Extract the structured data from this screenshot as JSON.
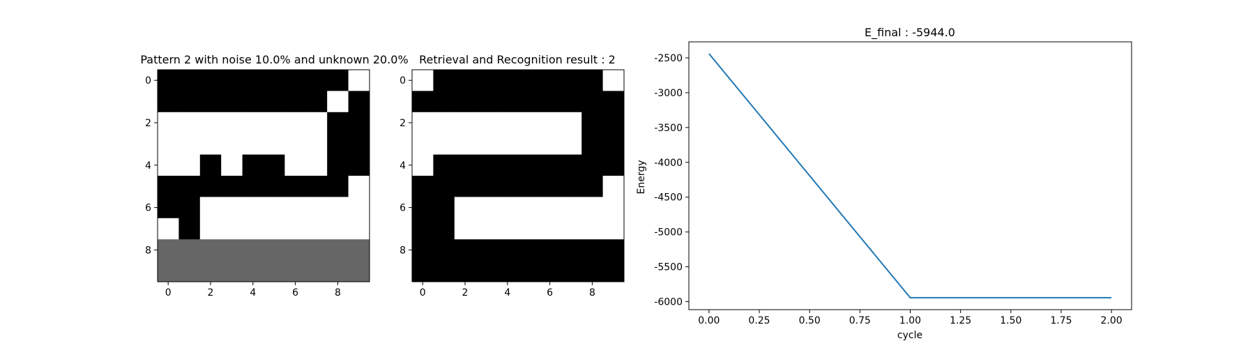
{
  "chart_data": [
    {
      "type": "heatmap",
      "title": "Pattern 2 with noise 10.0% and unknown 20.0%",
      "x_ticks": [
        "0",
        "2",
        "4",
        "6",
        "8"
      ],
      "y_ticks": [
        "0",
        "2",
        "4",
        "6",
        "8"
      ],
      "colors": {
        "1": "#ffffff",
        "-1": "#000000",
        "0": "#666666"
      },
      "grid": [
        [
          -1,
          -1,
          -1,
          -1,
          -1,
          -1,
          -1,
          -1,
          -1,
          1
        ],
        [
          -1,
          -1,
          -1,
          -1,
          -1,
          -1,
          -1,
          -1,
          1,
          -1
        ],
        [
          1,
          1,
          1,
          1,
          1,
          1,
          1,
          1,
          -1,
          -1
        ],
        [
          1,
          1,
          1,
          1,
          1,
          1,
          1,
          1,
          -1,
          -1
        ],
        [
          1,
          1,
          -1,
          1,
          -1,
          -1,
          1,
          1,
          -1,
          -1
        ],
        [
          -1,
          -1,
          -1,
          -1,
          -1,
          -1,
          -1,
          -1,
          -1,
          1
        ],
        [
          -1,
          -1,
          1,
          1,
          1,
          1,
          1,
          1,
          1,
          1
        ],
        [
          1,
          -1,
          1,
          1,
          1,
          1,
          1,
          1,
          1,
          1
        ],
        [
          0,
          0,
          0,
          0,
          0,
          0,
          0,
          0,
          0,
          0
        ],
        [
          0,
          0,
          0,
          0,
          0,
          0,
          0,
          0,
          0,
          0
        ]
      ]
    },
    {
      "type": "heatmap",
      "title": "Retrieval and Recognition result : 2",
      "x_ticks": [
        "0",
        "2",
        "4",
        "6",
        "8"
      ],
      "y_ticks": [
        "0",
        "2",
        "4",
        "6",
        "8"
      ],
      "colors": {
        "1": "#ffffff",
        "-1": "#000000",
        "0": "#666666"
      },
      "grid": [
        [
          1,
          -1,
          -1,
          -1,
          -1,
          -1,
          -1,
          -1,
          -1,
          1
        ],
        [
          -1,
          -1,
          -1,
          -1,
          -1,
          -1,
          -1,
          -1,
          -1,
          -1
        ],
        [
          1,
          1,
          1,
          1,
          1,
          1,
          1,
          1,
          -1,
          -1
        ],
        [
          1,
          1,
          1,
          1,
          1,
          1,
          1,
          1,
          -1,
          -1
        ],
        [
          1,
          -1,
          -1,
          -1,
          -1,
          -1,
          -1,
          -1,
          -1,
          -1
        ],
        [
          -1,
          -1,
          -1,
          -1,
          -1,
          -1,
          -1,
          -1,
          -1,
          1
        ],
        [
          -1,
          -1,
          1,
          1,
          1,
          1,
          1,
          1,
          1,
          1
        ],
        [
          -1,
          -1,
          1,
          1,
          1,
          1,
          1,
          1,
          1,
          1
        ],
        [
          -1,
          -1,
          -1,
          -1,
          -1,
          -1,
          -1,
          -1,
          -1,
          -1
        ],
        [
          -1,
          -1,
          -1,
          -1,
          -1,
          -1,
          -1,
          -1,
          -1,
          -1
        ]
      ]
    },
    {
      "type": "line",
      "title": "E_final : -5944.0",
      "xlabel": "cycle",
      "ylabel": "Energy",
      "x": [
        0,
        1,
        2
      ],
      "series": [
        {
          "values": [
            -2440,
            -5944,
            -5944
          ],
          "color": "#1f77b4"
        }
      ],
      "xlim": [
        -0.1,
        2.1
      ],
      "ylim": [
        -6115,
        -2270
      ],
      "x_ticks": [
        "0.00",
        "0.25",
        "0.50",
        "0.75",
        "1.00",
        "1.25",
        "1.50",
        "1.75",
        "2.00"
      ],
      "y_ticks": [
        "-2500",
        "-3000",
        "-3500",
        "-4000",
        "-4500",
        "-5000",
        "-5500",
        "-6000"
      ]
    }
  ]
}
